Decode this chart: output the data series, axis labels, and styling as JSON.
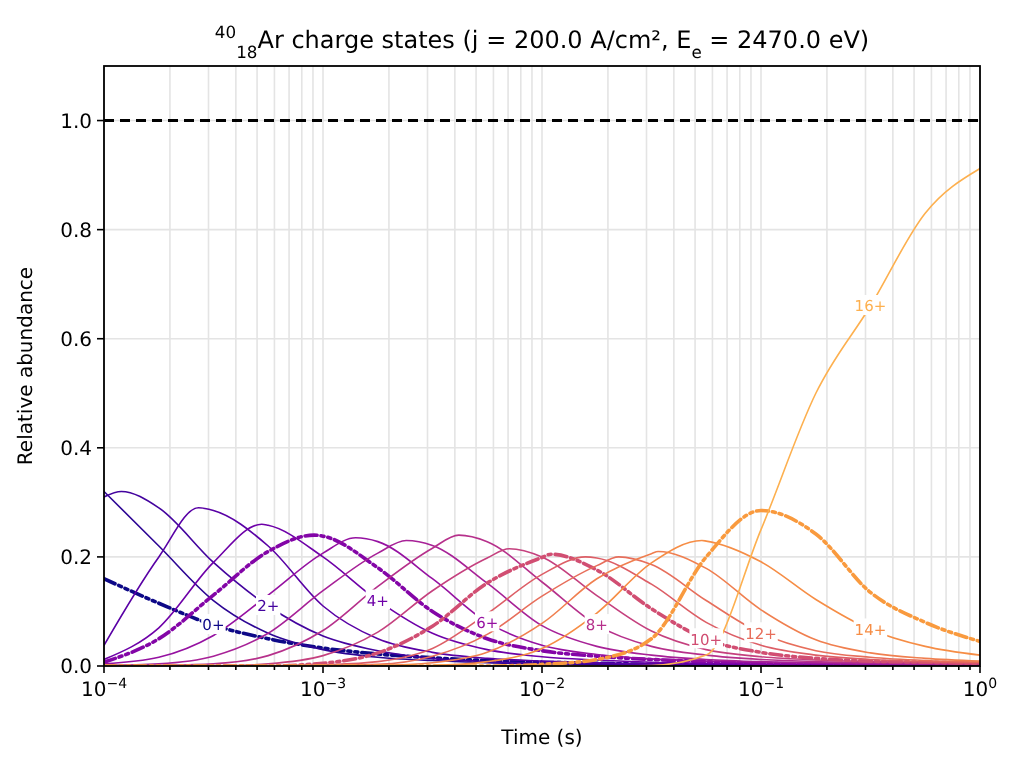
{
  "chart_data": {
    "type": "line",
    "title": "$^{40}$$_{18}$Ar charge states (j = 200.0 A/cm², E$_{e}$ = 2470.0 eV)",
    "xlabel": "Time (s)",
    "ylabel": "Relative abundance",
    "log": "x",
    "grid": true,
    "xlim": [
      0.0001,
      1
    ],
    "ylim": [
      0,
      1.1
    ],
    "xticks": [
      {
        "value": 0.0001,
        "label": "10$^{−4}$"
      },
      {
        "value": 0.0002,
        "label": null
      },
      {
        "value": 0.0003,
        "label": null
      },
      {
        "value": 0.0004,
        "label": null
      },
      {
        "value": 0.0005,
        "label": null
      },
      {
        "value": 0.0006,
        "label": null
      },
      {
        "value": 0.0007,
        "label": null
      },
      {
        "value": 0.0008,
        "label": null
      },
      {
        "value": 0.0009,
        "label": null
      },
      {
        "value": 0.001,
        "label": "10$^{−3}$"
      },
      {
        "value": 0.002,
        "label": null
      },
      {
        "value": 0.003,
        "label": null
      },
      {
        "value": 0.004,
        "label": null
      },
      {
        "value": 0.005,
        "label": null
      },
      {
        "value": 0.006,
        "label": null
      },
      {
        "value": 0.007,
        "label": null
      },
      {
        "value": 0.008,
        "label": null
      },
      {
        "value": 0.009,
        "label": null
      },
      {
        "value": 0.01,
        "label": "10$^{−2}$"
      },
      {
        "value": 0.02,
        "label": null
      },
      {
        "value": 0.03,
        "label": null
      },
      {
        "value": 0.04,
        "label": null
      },
      {
        "value": 0.05,
        "label": null
      },
      {
        "value": 0.06,
        "label": null
      },
      {
        "value": 0.07,
        "label": null
      },
      {
        "value": 0.08,
        "label": null
      },
      {
        "value": 0.09,
        "label": null
      },
      {
        "value": 0.1,
        "label": "10$^{−1}$"
      },
      {
        "value": 0.2,
        "label": null
      },
      {
        "value": 0.3,
        "label": null
      },
      {
        "value": 0.4,
        "label": null
      },
      {
        "value": 0.5,
        "label": null
      },
      {
        "value": 0.6,
        "label": null
      },
      {
        "value": 0.7,
        "label": null
      },
      {
        "value": 0.8,
        "label": null
      },
      {
        "value": 0.9,
        "label": null
      },
      {
        "value": 1,
        "label": "10$^{0}$"
      }
    ],
    "yticks": [
      {
        "value": 0,
        "label": "0.0"
      },
      {
        "value": 0.2,
        "label": "0.2"
      },
      {
        "value": 0.4,
        "label": "0.4"
      },
      {
        "value": 0.6,
        "label": "0.6"
      },
      {
        "value": 0.8,
        "label": "0.8"
      },
      {
        "value": 1,
        "label": "1.0"
      }
    ],
    "ref_lines": [
      {
        "axis": "y",
        "value": 1,
        "color": "#000000",
        "line_style": "dashed"
      }
    ],
    "x": [
      0.0001,
      0.000178,
      0.000316,
      0.000562,
      0.001,
      0.00178,
      0.00316,
      0.00562,
      0.01,
      0.0178,
      0.0316,
      0.0562,
      0.1,
      0.178,
      0.316,
      0.562,
      1
    ],
    "series": [
      {
        "name": "0+",
        "color": "#0d0887",
        "line_style": "dashdot",
        "values": [
          0.16,
          0.115,
          0.075,
          0.05,
          0.033,
          0.022,
          0.015,
          0.01,
          0.007,
          0.005,
          0.003,
          0.002,
          null,
          null,
          null,
          null,
          null
        ]
      },
      {
        "color": "#2c0594",
        "values": [
          0.32,
          0.22,
          0.12,
          0.06,
          0.03,
          0.016,
          0.01,
          0.006,
          0.004,
          0.003,
          0.002,
          0.001,
          null,
          null,
          null,
          null,
          null
        ]
      },
      {
        "name": "2+",
        "color": "#43039e",
        "x": [
          0.0001,
          0.00012,
          0.000178,
          0.000316,
          0.000562,
          0.001,
          0.00178,
          0.00316,
          0.00562,
          0.01,
          0.0178,
          0.0316,
          0.0562,
          0.1,
          0.178
        ],
        "values": [
          0.31,
          0.32,
          0.29,
          0.19,
          0.11,
          0.055,
          0.028,
          0.014,
          0.008,
          0.005,
          0.004,
          0.003,
          0.002,
          0.001,
          0.001
        ]
      },
      {
        "color": "#5901a5",
        "x": [
          0.0001,
          0.000178,
          0.00027,
          0.000316,
          0.000562,
          0.001,
          0.00178,
          0.00316,
          0.00562,
          0.01,
          0.0178,
          0.0316,
          0.0562,
          0.1,
          0.178,
          0.316
        ],
        "values": [
          0.038,
          0.2,
          0.29,
          0.285,
          0.22,
          0.11,
          0.05,
          0.025,
          0.014,
          0.009,
          0.006,
          0.004,
          0.003,
          0.002,
          0.001,
          0.001
        ]
      },
      {
        "name": "4+",
        "color": "#6e00a8",
        "x": [
          0.0001,
          0.000178,
          0.000316,
          0.000525,
          0.000562,
          0.001,
          0.00178,
          0.00316,
          0.00562,
          0.01,
          0.0178,
          0.0316,
          0.0562,
          0.1,
          0.178,
          0.316,
          0.562,
          1
        ],
        "values": [
          0.012,
          0.07,
          0.19,
          0.26,
          0.258,
          0.2,
          0.12,
          0.06,
          0.03,
          0.017,
          0.011,
          0.007,
          0.005,
          0.003,
          0.002,
          0.001,
          0.001,
          0
        ]
      },
      {
        "color": "#8305a7",
        "line_style": "dashdot",
        "x": [
          0.0001,
          0.000178,
          0.000316,
          0.000562,
          0.00091,
          0.001,
          0.00178,
          0.00316,
          0.00562,
          0.01,
          0.0178,
          0.0316,
          0.0562,
          0.1,
          0.178,
          0.316,
          0.562,
          1
        ],
        "values": [
          0.007,
          0.05,
          0.13,
          0.21,
          0.24,
          0.238,
          0.18,
          0.1,
          0.05,
          0.028,
          0.018,
          0.012,
          0.008,
          0.005,
          0.003,
          0.002,
          0.001,
          0.001
        ]
      },
      {
        "name": "6+",
        "color": "#9511a1",
        "x": [
          0.0001,
          0.000178,
          0.000316,
          0.000562,
          0.001,
          0.00141,
          0.00178,
          0.00316,
          0.00562,
          0.01,
          0.0178,
          0.0316,
          0.0562,
          0.1,
          0.178,
          0.316,
          0.562,
          1
        ],
        "values": [
          0.004,
          0.016,
          0.056,
          0.13,
          0.207,
          0.235,
          0.228,
          0.16,
          0.08,
          0.038,
          0.021,
          0.013,
          0.009,
          0.006,
          0.005,
          0.003,
          0.002,
          0.002
        ]
      },
      {
        "color": "#a72197",
        "x": [
          0.0001,
          0.000178,
          0.000316,
          0.000562,
          0.001,
          0.00178,
          0.0024,
          0.00316,
          0.00562,
          0.01,
          0.0178,
          0.0316,
          0.0562,
          0.1,
          0.178,
          0.316,
          0.562,
          1
        ],
        "values": [
          0.001,
          0.004,
          0.018,
          0.06,
          0.138,
          0.207,
          0.23,
          0.221,
          0.152,
          0.074,
          0.036,
          0.02,
          0.012,
          0.008,
          0.006,
          0.005,
          0.003,
          0.002
        ]
      },
      {
        "name": "8+",
        "color": "#b6308b",
        "x": [
          0.0001,
          0.000178,
          0.000316,
          0.000562,
          0.001,
          0.00178,
          0.00316,
          0.00417,
          0.00562,
          0.01,
          0.0178,
          0.0316,
          0.0562,
          0.1,
          0.178,
          0.316,
          0.562,
          1
        ],
        "values": [
          0,
          0.001,
          0.004,
          0.019,
          0.065,
          0.146,
          0.216,
          0.24,
          0.228,
          0.154,
          0.075,
          0.036,
          0.02,
          0.012,
          0.008,
          0.006,
          0.005,
          0.003
        ]
      },
      {
        "color": "#c5407e",
        "x": [
          0.0001,
          0.000178,
          0.000316,
          0.000562,
          0.001,
          0.00178,
          0.00316,
          0.00562,
          0.00708,
          0.01,
          0.0178,
          0.0316,
          0.0562,
          0.1,
          0.178,
          0.316,
          0.562,
          1
        ],
        "values": [
          0,
          0,
          0,
          0.004,
          0.019,
          0.062,
          0.138,
          0.198,
          0.215,
          0.2,
          0.129,
          0.064,
          0.03,
          0.017,
          0.011,
          0.008,
          0.006,
          0.004
        ]
      },
      {
        "name": "10+",
        "color": "#d14e72",
        "line_style": "dashdot",
        "x": [
          0.0001,
          0.000178,
          0.000316,
          0.000562,
          0.001,
          0.00178,
          0.00316,
          0.00562,
          0.01,
          0.011,
          0.0178,
          0.0316,
          0.0562,
          0.1,
          0.178,
          0.316,
          0.562,
          1
        ],
        "values": [
          0,
          0,
          0,
          0,
          0.005,
          0.024,
          0.073,
          0.152,
          0.199,
          0.205,
          0.176,
          0.105,
          0.049,
          0.025,
          0.014,
          0.009,
          0.007,
          0.005
        ]
      },
      {
        "color": "#dd5e66",
        "x": [
          0.0001,
          0.000178,
          0.000316,
          0.000562,
          0.001,
          0.00178,
          0.00316,
          0.00562,
          0.01,
          0.0158,
          0.0178,
          0.0316,
          0.0562,
          0.1,
          0.178,
          0.316,
          0.562,
          1
        ],
        "values": [
          0,
          0,
          0,
          0,
          0.002,
          0.008,
          0.032,
          0.096,
          0.168,
          0.2,
          0.198,
          0.15,
          0.08,
          0.038,
          0.02,
          0.012,
          0.008,
          0.006
        ]
      },
      {
        "name": "12+",
        "color": "#e76e5b",
        "x": [
          0.0001,
          0.000178,
          0.000316,
          0.000562,
          0.001,
          0.00178,
          0.00316,
          0.00562,
          0.01,
          0.0178,
          0.0224,
          0.0316,
          0.0562,
          0.1,
          0.178,
          0.316,
          0.562,
          1
        ],
        "values": [
          0,
          0,
          0,
          0,
          0.001,
          0.003,
          0.018,
          0.058,
          0.128,
          0.184,
          0.2,
          0.186,
          0.12,
          0.06,
          0.028,
          0.016,
          0.01,
          0.007
        ]
      },
      {
        "color": "#f07f4f",
        "x": [
          0.0001,
          0.000178,
          0.000316,
          0.000562,
          0.001,
          0.00178,
          0.00316,
          0.00562,
          0.01,
          0.0178,
          0.0316,
          0.0339,
          0.0562,
          0.1,
          0.178,
          0.316,
          0.562,
          1
        ],
        "values": [
          0,
          0,
          0,
          0,
          0,
          0.001,
          0.006,
          0.025,
          0.078,
          0.16,
          0.206,
          0.21,
          0.179,
          0.103,
          0.048,
          0.024,
          0.014,
          0.009
        ]
      },
      {
        "name": "14+",
        "color": "#f68d45",
        "x": [
          0.0001,
          0.000178,
          0.000316,
          0.000562,
          0.001,
          0.00178,
          0.00316,
          0.00562,
          0.01,
          0.0178,
          0.0316,
          0.0537,
          0.0562,
          0.1,
          0.178,
          0.316,
          0.562,
          1
        ],
        "values": [
          0,
          0,
          0,
          0,
          0,
          0,
          0.001,
          0.008,
          0.032,
          0.097,
          0.189,
          0.23,
          0.229,
          0.191,
          0.122,
          0.067,
          0.036,
          0.02
        ]
      },
      {
        "color": "#f99a3e",
        "line_style": "dashdot",
        "values": [
          0,
          0,
          0,
          0,
          0,
          0,
          0,
          0,
          0.003,
          0.012,
          0.05,
          0.2,
          0.285,
          0.242,
          0.135,
          0.08,
          0.045
        ]
      },
      {
        "name": "16+",
        "color": "#fdb04f",
        "values": [
          0,
          0,
          0,
          0,
          0,
          0,
          0,
          0,
          0,
          0,
          0.001,
          0.02,
          0.25,
          0.5,
          0.66,
          0.83,
          0.912
        ]
      }
    ]
  }
}
